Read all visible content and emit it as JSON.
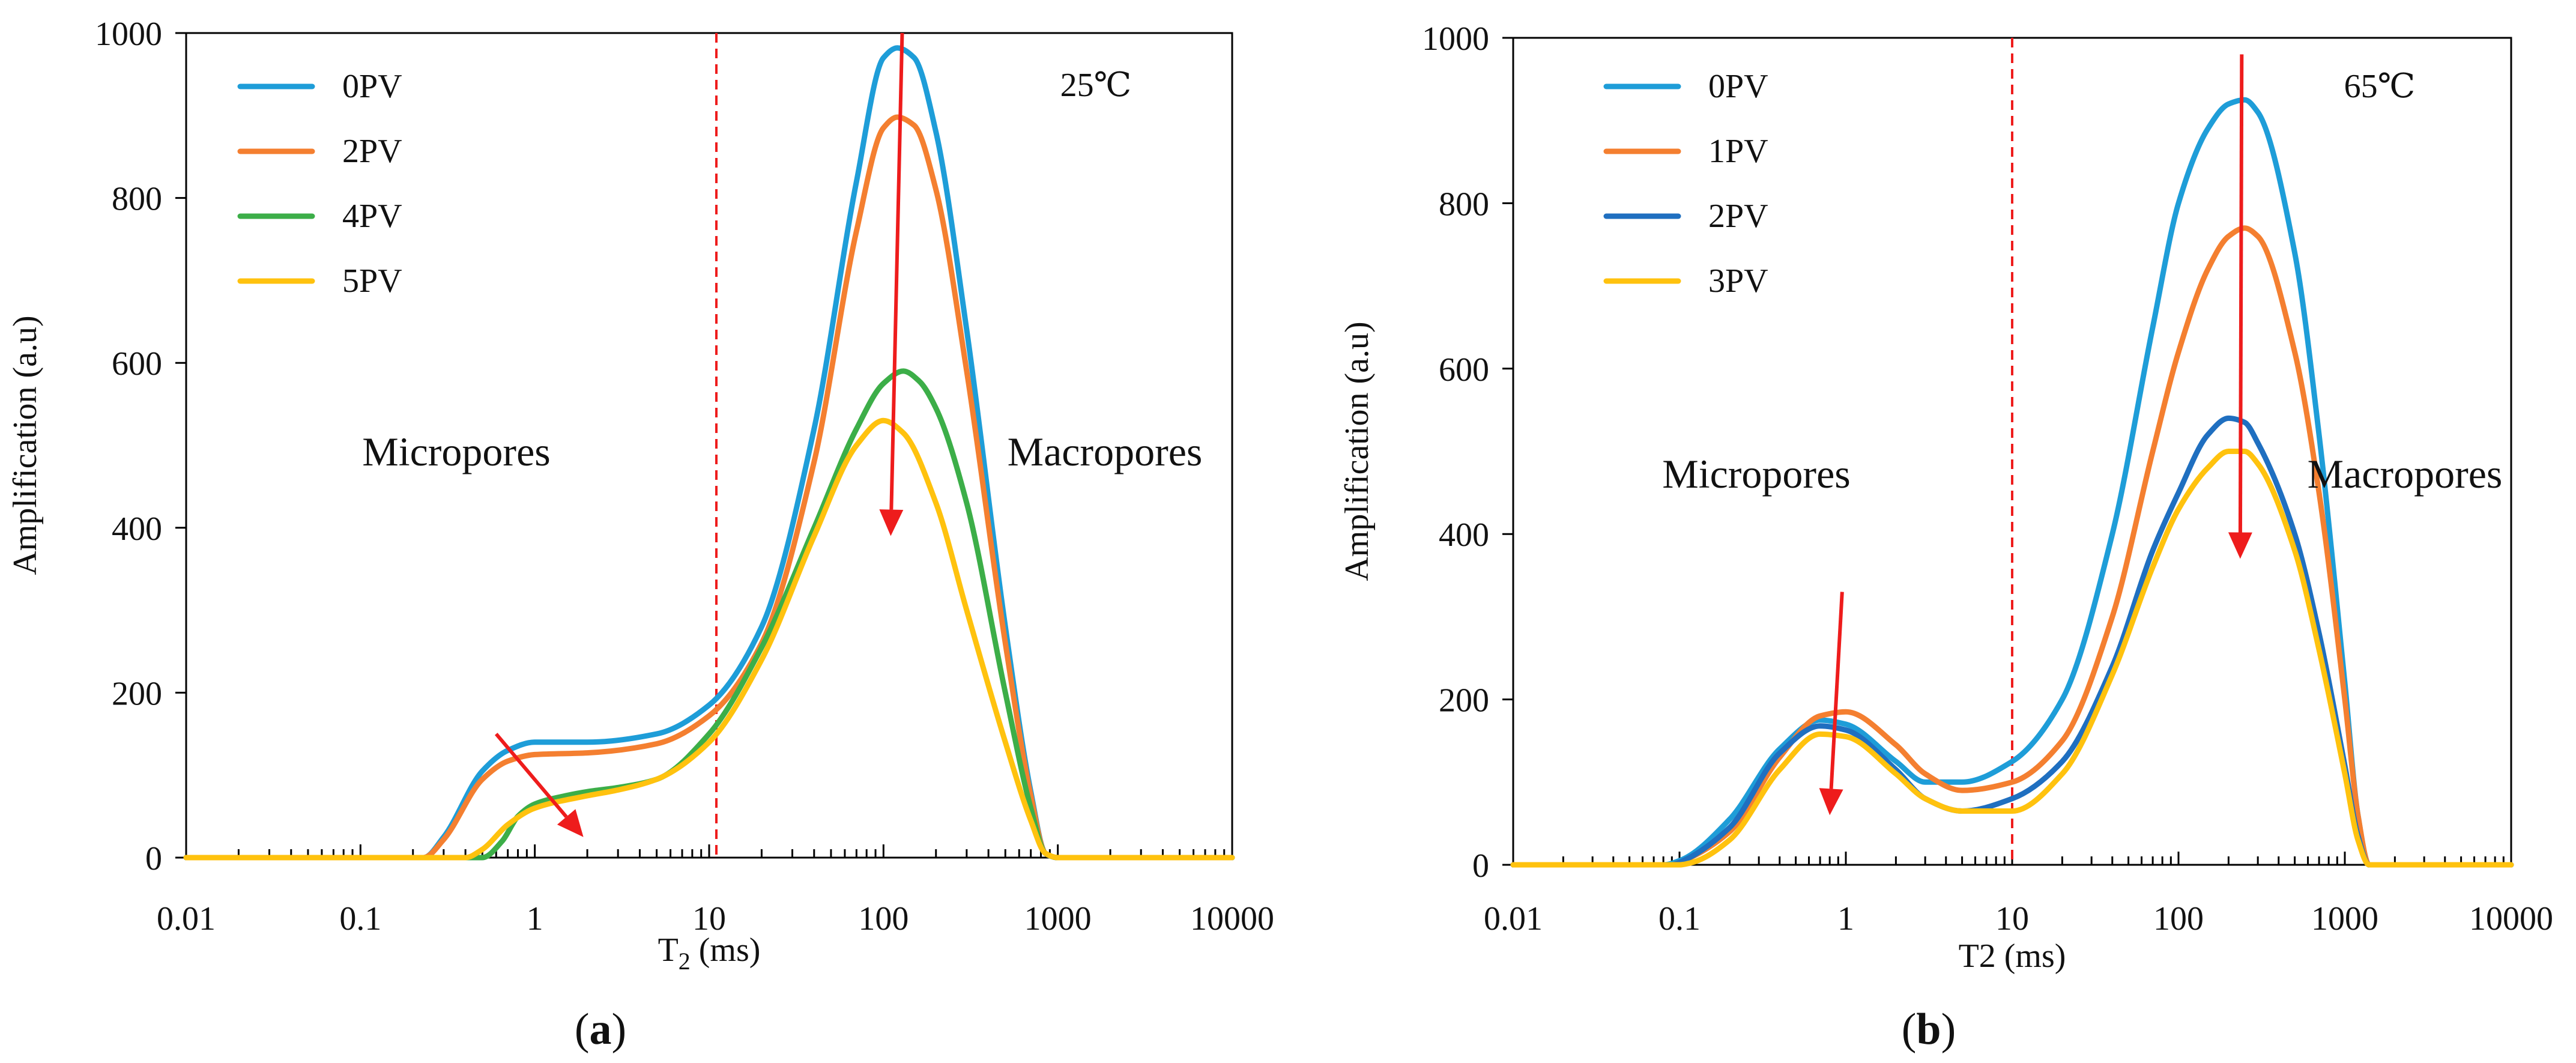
{
  "figure": {
    "panels": [
      {
        "label_open": "(",
        "label_letter": "a",
        "label_close": ")"
      },
      {
        "label_open": "(",
        "label_letter": "b",
        "label_close": ")"
      }
    ]
  },
  "chart_data": [
    {
      "type": "line",
      "panel": "a",
      "temperature_label": "25℃",
      "xscale": "log",
      "xlim": [
        0.01,
        10000
      ],
      "ylim": [
        0,
        1000
      ],
      "xticks": [
        0.01,
        0.1,
        1,
        10,
        100,
        1000,
        10000
      ],
      "xtick_labels": [
        "0.01",
        "0.1",
        "1",
        "10",
        "100",
        "1000",
        "10000"
      ],
      "yticks": [
        0,
        200,
        400,
        600,
        800,
        1000
      ],
      "ytick_labels": [
        "0",
        "200",
        "400",
        "600",
        "800",
        "1000"
      ],
      "xlabel_main": "T",
      "xlabel_sub": "2",
      "xlabel_unit": " (ms)",
      "ylabel": "Amplification (a.u)",
      "legend_position": "top-left",
      "region_labels": {
        "left": "Micropores",
        "right": "Macropores"
      },
      "divider_x": 11,
      "divider_color": "#ee1c1c",
      "arrows": [
        {
          "from": [
            0.6,
            150
          ],
          "to": [
            1.9,
            25
          ]
        },
        {
          "from": [
            128,
            1000
          ],
          "to": [
            110,
            390
          ]
        }
      ],
      "series": [
        {
          "name": "0PV",
          "color": "#1e9dd8",
          "x": [
            0.01,
            0.23,
            0.3,
            0.5,
            0.7,
            1,
            2,
            5,
            10,
            20,
            40,
            70,
            100,
            120,
            150,
            200,
            300,
            500,
            700,
            850,
            1000,
            10000
          ],
          "values": [
            0,
            0,
            25,
            105,
            130,
            140,
            140,
            150,
            185,
            280,
            520,
            820,
            970,
            982,
            970,
            880,
            640,
            280,
            80,
            5,
            0,
            0
          ]
        },
        {
          "name": "2PV",
          "color": "#f47f30",
          "x": [
            0.01,
            0.23,
            0.3,
            0.5,
            0.7,
            1,
            2,
            5,
            10,
            20,
            40,
            70,
            100,
            120,
            150,
            200,
            300,
            500,
            700,
            850,
            1000,
            10000
          ],
          "values": [
            0,
            0,
            22,
            95,
            117,
            125,
            127,
            138,
            172,
            260,
            480,
            760,
            885,
            898,
            888,
            810,
            590,
            260,
            75,
            5,
            0,
            0
          ]
        },
        {
          "name": "4PV",
          "color": "#3cae48",
          "x": [
            0.01,
            0.5,
            0.65,
            0.8,
            1,
            1.5,
            2,
            3,
            5,
            10,
            20,
            40,
            70,
            100,
            130,
            160,
            200,
            300,
            500,
            700,
            850,
            1000,
            10000
          ],
          "values": [
            0,
            0,
            20,
            50,
            65,
            75,
            80,
            85,
            95,
            150,
            255,
            400,
            520,
            575,
            590,
            578,
            545,
            430,
            200,
            60,
            5,
            0,
            0
          ]
        },
        {
          "name": "5PV",
          "color": "#ffc20e",
          "x": [
            0.01,
            0.4,
            0.5,
            0.7,
            1,
            2,
            3,
            5,
            10,
            20,
            40,
            70,
            100,
            130,
            200,
            300,
            500,
            700,
            850,
            1000,
            10000
          ],
          "values": [
            0,
            0,
            10,
            40,
            60,
            75,
            82,
            95,
            140,
            240,
            390,
            500,
            530,
            515,
            430,
            300,
            140,
            45,
            5,
            0,
            0
          ]
        }
      ]
    },
    {
      "type": "line",
      "panel": "b",
      "temperature_label": "65℃",
      "xscale": "log",
      "xlim": [
        0.01,
        10000
      ],
      "ylim": [
        0,
        1000
      ],
      "xticks": [
        0.01,
        0.1,
        1,
        10,
        100,
        1000,
        10000
      ],
      "xtick_labels": [
        "0.01",
        "0.1",
        "1",
        "10",
        "100",
        "1000",
        "10000"
      ],
      "yticks": [
        0,
        200,
        400,
        600,
        800,
        1000
      ],
      "ytick_labels": [
        "0",
        "200",
        "400",
        "600",
        "800",
        "1000"
      ],
      "xlabel_main": "T2",
      "xlabel_sub": "",
      "xlabel_unit": " (ms)",
      "ylabel": "Amplification (a.u)",
      "legend_position": "top-left",
      "region_labels": {
        "left": "Micropores",
        "right": "Macropores"
      },
      "divider_x": 10,
      "divider_color": "#ee1c1c",
      "arrows": [
        {
          "from": [
            0.95,
            330
          ],
          "to": [
            0.8,
            60
          ]
        },
        {
          "from": [
            240,
            980
          ],
          "to": [
            235,
            370
          ]
        }
      ],
      "series": [
        {
          "name": "0PV",
          "color": "#1e9dd8",
          "x": [
            0.01,
            0.08,
            0.1,
            0.2,
            0.4,
            0.7,
            1,
            2,
            3,
            5,
            10,
            20,
            40,
            70,
            100,
            150,
            200,
            250,
            300,
            500,
            700,
            1000,
            1200,
            1400,
            10000
          ],
          "values": [
            0,
            0,
            5,
            55,
            140,
            175,
            170,
            125,
            100,
            100,
            125,
            200,
            400,
            650,
            800,
            890,
            920,
            925,
            910,
            740,
            520,
            220,
            60,
            0,
            0
          ]
        },
        {
          "name": "1PV",
          "color": "#f47f30",
          "x": [
            0.01,
            0.09,
            0.1,
            0.2,
            0.4,
            0.7,
            1,
            2,
            3,
            5,
            10,
            20,
            40,
            70,
            100,
            150,
            200,
            250,
            300,
            500,
            700,
            1000,
            1200,
            1400,
            10000
          ],
          "values": [
            0,
            0,
            3,
            40,
            130,
            180,
            185,
            145,
            110,
            90,
            100,
            150,
            300,
            500,
            620,
            720,
            760,
            770,
            760,
            620,
            450,
            200,
            60,
            0,
            0
          ]
        },
        {
          "name": "2PV",
          "color": "#1f6fc0",
          "x": [
            0.01,
            0.09,
            0.1,
            0.2,
            0.4,
            0.7,
            1,
            2,
            3,
            5,
            10,
            20,
            40,
            70,
            100,
            150,
            200,
            250,
            300,
            500,
            700,
            1000,
            1200,
            1400,
            10000
          ],
          "values": [
            0,
            0,
            3,
            45,
            135,
            168,
            163,
            115,
            80,
            65,
            80,
            125,
            240,
            380,
            450,
            520,
            540,
            535,
            510,
            400,
            280,
            120,
            35,
            0,
            0
          ]
        },
        {
          "name": "3PV",
          "color": "#ffc20e",
          "x": [
            0.01,
            0.1,
            0.12,
            0.2,
            0.4,
            0.7,
            1,
            2,
            3,
            5,
            10,
            20,
            40,
            70,
            100,
            150,
            200,
            250,
            300,
            500,
            700,
            1000,
            1200,
            1400,
            10000
          ],
          "values": [
            0,
            0,
            3,
            30,
            115,
            158,
            155,
            110,
            80,
            65,
            65,
            110,
            230,
            360,
            430,
            480,
            500,
            500,
            485,
            380,
            260,
            110,
            30,
            0,
            0
          ]
        }
      ]
    }
  ]
}
